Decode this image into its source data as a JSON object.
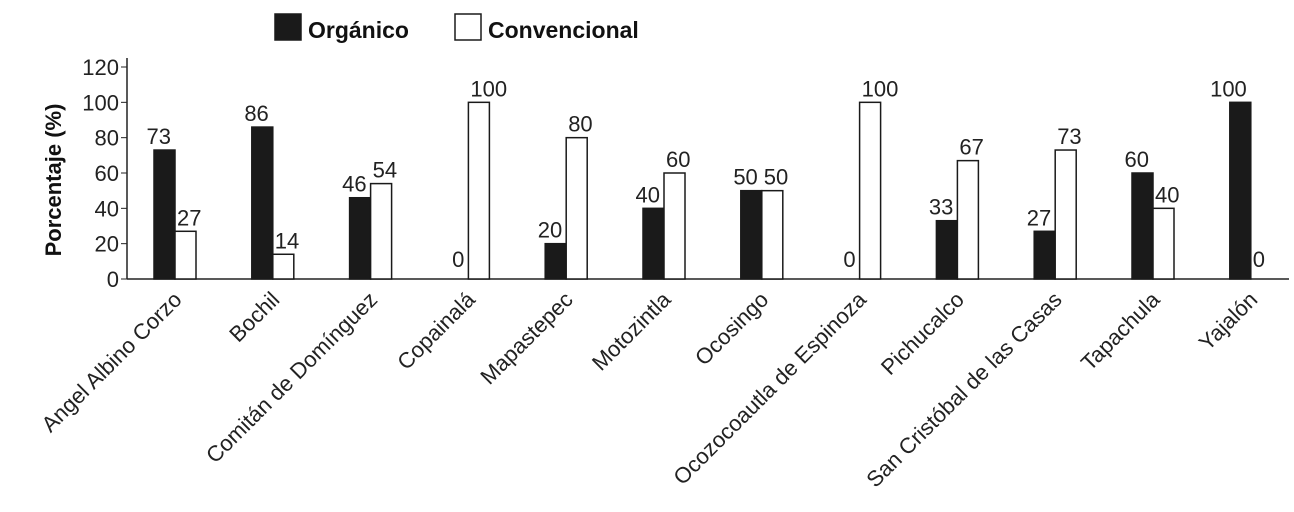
{
  "chart_data": {
    "type": "bar",
    "ylabel": "Porcentaje (%)",
    "xlabel": "",
    "ylim": [
      0,
      120
    ],
    "yticks": [
      0,
      20,
      40,
      60,
      80,
      100,
      120
    ],
    "legend_position": "top-center",
    "grid": false,
    "categories": [
      "Angel Albino Corzo",
      "Bochil",
      "Comitán de Domínguez",
      "Copainalá",
      "Mapastepec",
      "Motozintla",
      "Ocosingo",
      "Ocozocoautla de Espinoza",
      "Pichucalco",
      "San Cristóbal de las Casas",
      "Tapachula",
      "Yajalón"
    ],
    "series": [
      {
        "name": "Orgánico",
        "color": "#1a1a1a",
        "values": [
          73,
          86,
          46,
          0,
          20,
          40,
          50,
          0,
          33,
          27,
          60,
          100
        ]
      },
      {
        "name": "Convencional",
        "color": "#ffffff",
        "values": [
          27,
          14,
          54,
          100,
          80,
          60,
          50,
          100,
          67,
          73,
          40,
          0
        ]
      }
    ]
  }
}
